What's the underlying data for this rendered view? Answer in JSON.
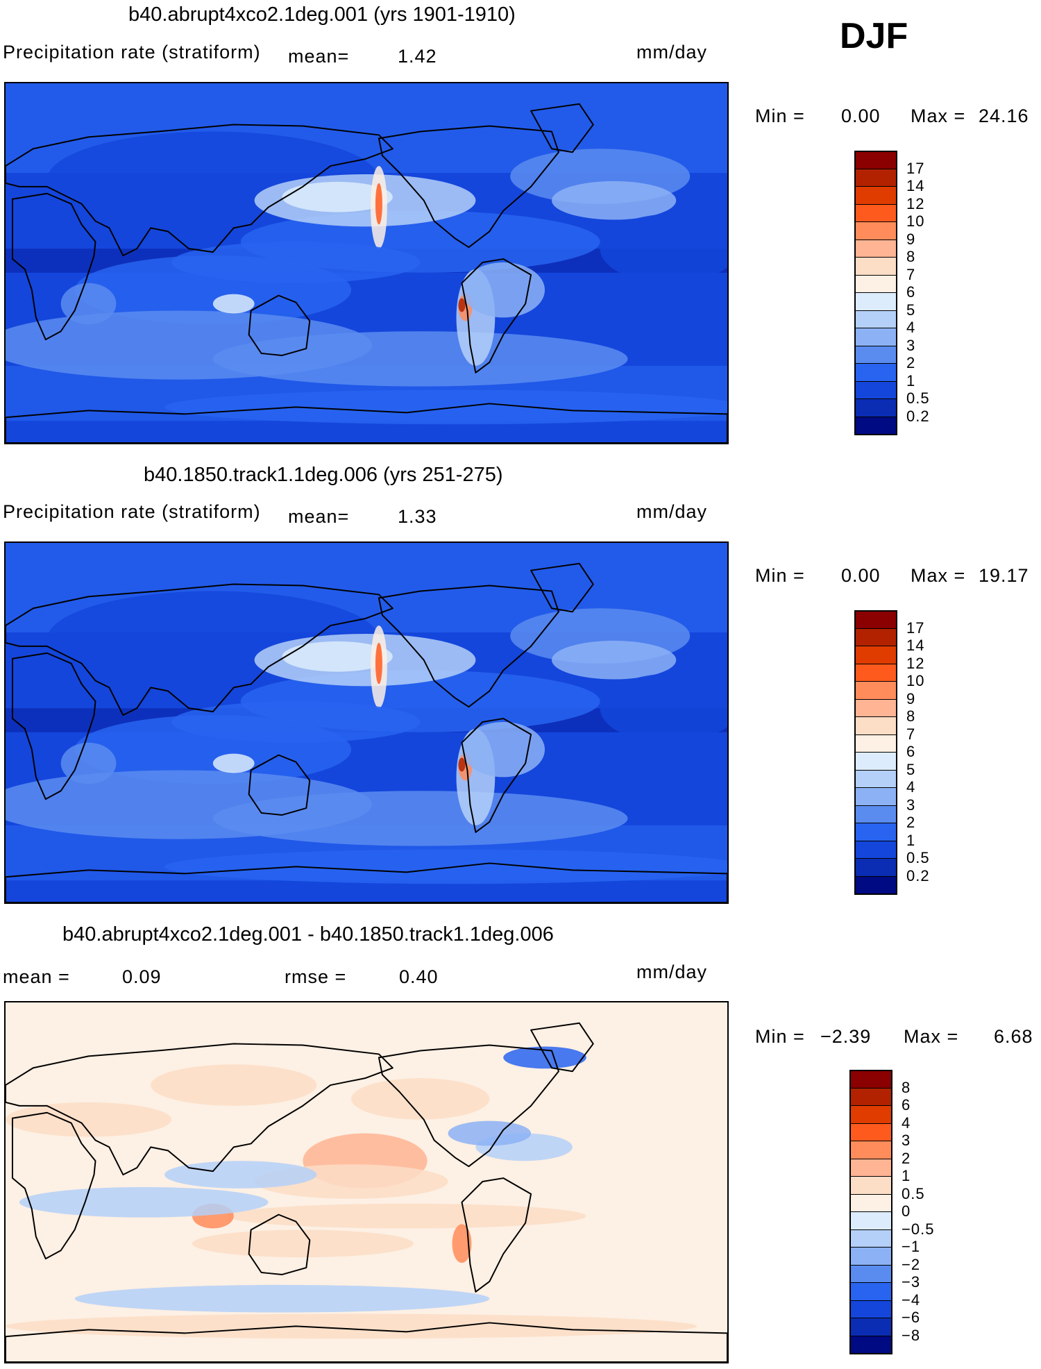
{
  "season": "DJF",
  "panels": [
    {
      "title": "b40.abrupt4xco2.1deg.001 (yrs 1901-1910)",
      "variable": "Precipitation rate (stratiform)",
      "mean_label": "mean=",
      "mean_value": "1.42",
      "units": "mm/day",
      "min_label": "Min =",
      "min_value": "0.00",
      "max_label": "Max =",
      "max_value": "24.16"
    },
    {
      "title": "b40.1850.track1.1deg.006 (yrs 251-275)",
      "variable": "Precipitation rate (stratiform)",
      "mean_label": "mean=",
      "mean_value": "1.33",
      "units": "mm/day",
      "min_label": "Min =",
      "min_value": "0.00",
      "max_label": "Max =",
      "max_value": "19.17"
    },
    {
      "title": "b40.abrupt4xco2.1deg.001 - b40.1850.track1.1deg.006",
      "mean_label": "mean =",
      "mean_value": "0.09",
      "rmse_label": "rmse =",
      "rmse_value": "0.40",
      "units": "mm/day",
      "min_label": "Min =",
      "min_value": "−2.39",
      "max_label": "Max =",
      "max_value": "6.68"
    }
  ],
  "chart_data": [
    {
      "type": "heatmap",
      "title": "b40.abrupt4xco2.1deg.001 (yrs 1901-1910)",
      "variable": "Precipitation rate (stratiform)",
      "units": "mm/day",
      "mean": 1.42,
      "min": 0.0,
      "max": 24.16,
      "colorbar_levels": [
        "17",
        "14",
        "12",
        "10",
        "9",
        "8",
        "7",
        "6",
        "5",
        "4",
        "3",
        "2",
        "1",
        "0.5",
        "0.2"
      ],
      "colorbar_colors": [
        "#8b0000",
        "#b22200",
        "#e03c00",
        "#ff5a1e",
        "#ff8c5a",
        "#ffb494",
        "#fcddc6",
        "#fdf0e4",
        "#dcecfc",
        "#b4d0f8",
        "#8cb2f5",
        "#5a8cf0",
        "#2864f0",
        "#1446dc",
        "#0a2db4",
        "#000a82"
      ]
    },
    {
      "type": "heatmap",
      "title": "b40.1850.track1.1deg.006 (yrs 251-275)",
      "variable": "Precipitation rate (stratiform)",
      "units": "mm/day",
      "mean": 1.33,
      "min": 0.0,
      "max": 19.17,
      "colorbar_levels": [
        "17",
        "14",
        "12",
        "10",
        "9",
        "8",
        "7",
        "6",
        "5",
        "4",
        "3",
        "2",
        "1",
        "0.5",
        "0.2"
      ],
      "colorbar_colors": [
        "#8b0000",
        "#b22200",
        "#e03c00",
        "#ff5a1e",
        "#ff8c5a",
        "#ffb494",
        "#fcddc6",
        "#fdf0e4",
        "#dcecfc",
        "#b4d0f8",
        "#8cb2f5",
        "#5a8cf0",
        "#2864f0",
        "#1446dc",
        "#0a2db4",
        "#000a82"
      ]
    },
    {
      "type": "heatmap",
      "title": "b40.abrupt4xco2.1deg.001 - b40.1850.track1.1deg.006",
      "units": "mm/day",
      "mean": 0.09,
      "rmse": 0.4,
      "min": -2.39,
      "max": 6.68,
      "colorbar_levels": [
        "8",
        "6",
        "4",
        "3",
        "2",
        "1",
        "0.5",
        "0",
        "−0.5",
        "−1",
        "−2",
        "−3",
        "−4",
        "−6",
        "−8"
      ],
      "colorbar_colors": [
        "#8b0000",
        "#b22200",
        "#e03c00",
        "#ff5a1e",
        "#ff8c5a",
        "#ffb494",
        "#fcddc6",
        "#fdf0e4",
        "#dcecfc",
        "#b4d0f8",
        "#8cb2f5",
        "#5a8cf0",
        "#2864f0",
        "#1446dc",
        "#0a2db4",
        "#000a82"
      ]
    }
  ]
}
